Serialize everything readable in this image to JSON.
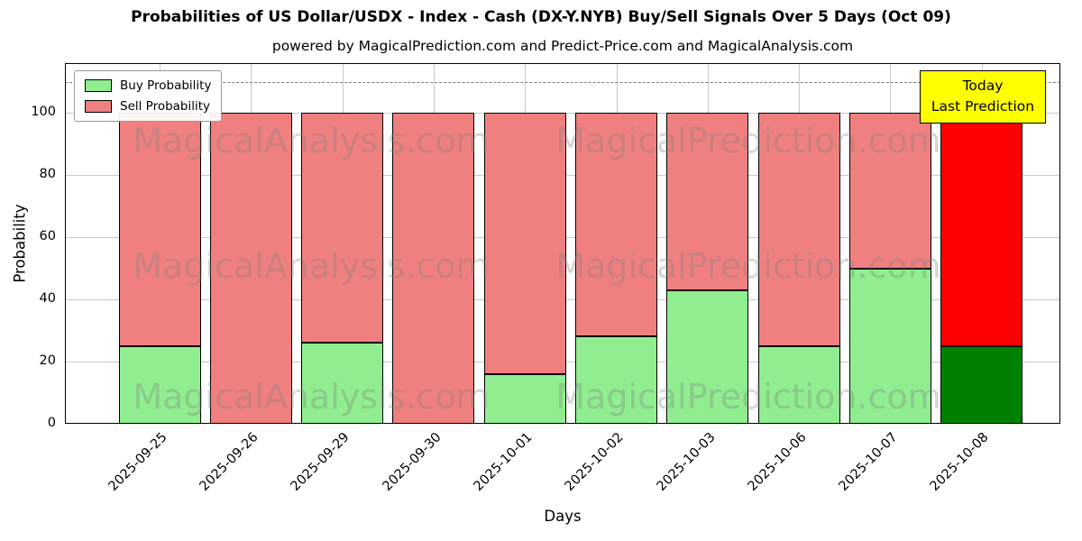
{
  "title": "Probabilities of US Dollar/USDX - Index - Cash (DX-Y.NYB) Buy/Sell Signals Over 5 Days (Oct 09)",
  "subtitle": "powered by MagicalPrediction.com and Predict-Price.com and MagicalAnalysis.com",
  "axes": {
    "xlabel": "Days",
    "ylabel": "Probability",
    "yticks": [
      0,
      20,
      40,
      60,
      80,
      100
    ],
    "ylim": [
      0,
      116
    ],
    "dashed_line_y": 110,
    "grid": true
  },
  "legend": {
    "position": "upper-left",
    "items": [
      {
        "label": "Buy Probability",
        "color": "#90ee90"
      },
      {
        "label": "Sell Probability",
        "color": "#f08080"
      }
    ]
  },
  "annotation_box": {
    "lines": [
      "Today",
      "Last Prediction"
    ],
    "bg_color": "#ffff00",
    "border_color": "#000000"
  },
  "watermarks": {
    "left_text": "MagicalAnalysis.com",
    "right_text": "MagicalPrediction.com"
  },
  "chart_data": {
    "type": "bar",
    "stacked": true,
    "title": "Probabilities of US Dollar/USDX - Index - Cash (DX-Y.NYB) Buy/Sell Signals Over 5 Days (Oct 09)",
    "xlabel": "Days",
    "ylabel": "Probability",
    "ylim": [
      0,
      116
    ],
    "categories": [
      "2025-09-25",
      "2025-09-26",
      "2025-09-29",
      "2025-09-30",
      "2025-10-01",
      "2025-10-02",
      "2025-10-03",
      "2025-10-06",
      "2025-10-07",
      "2025-10-08"
    ],
    "series": [
      {
        "name": "Buy Probability",
        "color": "#90ee90",
        "values": [
          25,
          0,
          26,
          0,
          16,
          28,
          43,
          25,
          50,
          25
        ]
      },
      {
        "name": "Sell Probability",
        "color": "#f08080",
        "values": [
          75,
          100,
          74,
          100,
          84,
          72,
          57,
          75,
          50,
          75
        ]
      }
    ],
    "highlight_last_bar": {
      "buy_color": "#008000",
      "sell_color": "#ff0000"
    },
    "bar_edge_color": "#000000",
    "legend_position": "upper-left",
    "grid": true
  }
}
